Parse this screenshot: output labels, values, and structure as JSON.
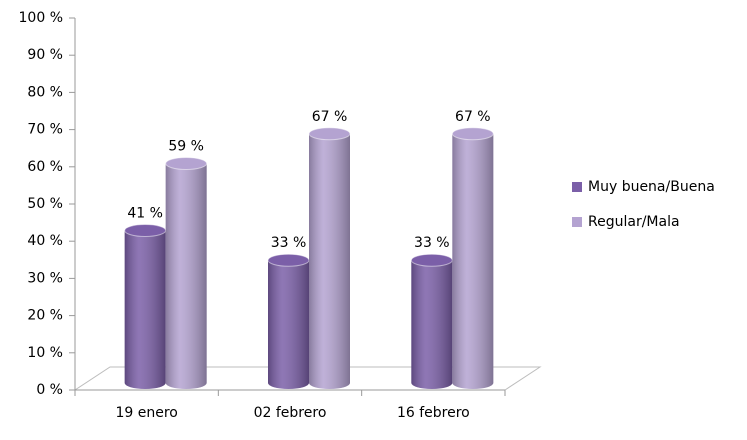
{
  "chart_data": {
    "type": "bar3d",
    "categories": [
      "19 enero",
      "02 febrero",
      "16 febrero"
    ],
    "series": [
      {
        "name": "Muy buena/Buena",
        "color": "#7b5fa8",
        "values": [
          41,
          33,
          33
        ],
        "value_labels": [
          "41 %",
          "33 %",
          "33 %"
        ]
      },
      {
        "name": "Regular/Mala",
        "color": "#b4a3d1",
        "values": [
          59,
          67,
          67
        ],
        "value_labels": [
          "59 %",
          "67 %",
          "67 %"
        ]
      }
    ],
    "ylim": [
      0,
      100
    ],
    "yticks": [
      {
        "value": 0,
        "label": "0 %"
      },
      {
        "value": 10,
        "label": "10 %"
      },
      {
        "value": 20,
        "label": "20 %"
      },
      {
        "value": 30,
        "label": "30 %"
      },
      {
        "value": 40,
        "label": "40 %"
      },
      {
        "value": 50,
        "label": "50 %"
      },
      {
        "value": 60,
        "label": "60 %"
      },
      {
        "value": 70,
        "label": "70 %"
      },
      {
        "value": 80,
        "label": "80 %"
      },
      {
        "value": 90,
        "label": "90 %"
      },
      {
        "value": 100,
        "label": "100 %"
      }
    ],
    "legend": "right"
  }
}
